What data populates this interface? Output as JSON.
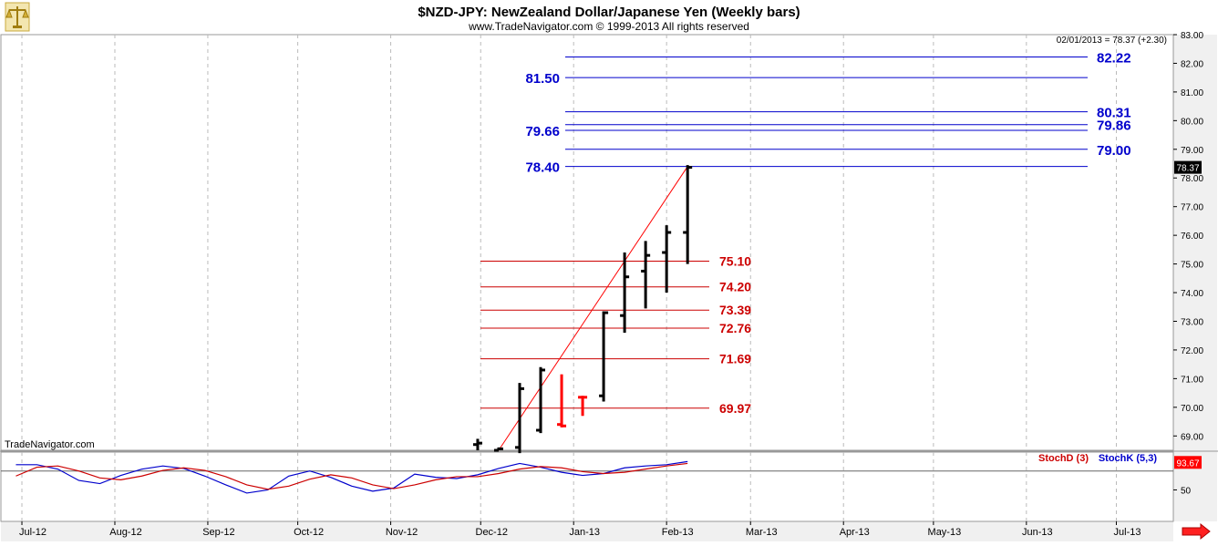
{
  "header": {
    "title": "$NZD-JPY:  NewZealand Dollar/Japanese Yen  (Weekly bars)",
    "copyright": "www.TradeNavigator.com © 1999-2013 All rights reserved",
    "readout": "02/01/2013 = 78.37 (+2.30)",
    "watermark": "TradeNavigator.com",
    "logo_icon": "scales-icon",
    "scroll_icon": "red-arrow-right-icon"
  },
  "colors": {
    "bar": "#000000",
    "down_bar": "#ff0000",
    "blue_level": "#0000cc",
    "red_level": "#cc0000",
    "stoch_d": "#cc0000",
    "stoch_k": "#0000cc",
    "grid": "#bbbbbb",
    "price_box": "#000000",
    "stoch_box": "#ff0000"
  },
  "chart_data": {
    "type": "bar",
    "title": "$NZD-JPY:  NewZealand Dollar/Japanese Yen  (Weekly bars)",
    "ylim": [
      68.5,
      83.0
    ],
    "y_ticks": [
      "83.00",
      "82.00",
      "81.00",
      "80.00",
      "79.00",
      "78.00",
      "77.00",
      "76.00",
      "75.00",
      "74.00",
      "73.00",
      "72.00",
      "71.00",
      "70.00",
      "69.00"
    ],
    "y_tick_values": [
      83,
      82,
      81,
      80,
      79,
      78,
      77,
      76,
      75,
      74,
      73,
      72,
      71,
      70,
      69
    ],
    "x_ticks": [
      "Jul-12",
      "Aug-12",
      "Sep-12",
      "Oct-12",
      "Nov-12",
      "Dec-12",
      "Jan-13",
      "Feb-13",
      "Mar-13",
      "Apr-13",
      "May-13",
      "Jun-13",
      "Jul-13"
    ],
    "x_tick_dates": [
      "2012-07-01",
      "2012-08-01",
      "2012-09-01",
      "2012-10-01",
      "2012-11-01",
      "2012-12-01",
      "2013-01-01",
      "2013-02-01",
      "2013-03-01",
      "2013-04-01",
      "2013-05-01",
      "2013-06-01",
      "2013-07-01"
    ],
    "x_range": [
      "2012-06-24",
      "2013-07-20"
    ],
    "last_price_label": "78.37",
    "last_price": 78.37,
    "bars": [
      {
        "date": "2012-11-30",
        "open": 68.7,
        "high": 68.9,
        "low": 68.5,
        "close": 68.75,
        "down": false
      },
      {
        "date": "2012-12-07",
        "open": 68.5,
        "high": 68.6,
        "low": 68.5,
        "close": 68.55,
        "down": false
      },
      {
        "date": "2012-12-14",
        "open": 68.6,
        "high": 70.85,
        "low": 68.4,
        "close": 70.65,
        "down": false
      },
      {
        "date": "2012-12-21",
        "open": 69.2,
        "high": 71.4,
        "low": 69.1,
        "close": 71.3,
        "down": false
      },
      {
        "date": "2012-12-28",
        "open": 69.4,
        "high": 71.15,
        "low": 69.3,
        "close": 69.35,
        "down": true
      },
      {
        "date": "2013-01-04",
        "open": 70.35,
        "high": 70.4,
        "low": 69.7,
        "close": 70.35,
        "down": true
      },
      {
        "date": "2013-01-11",
        "open": 70.4,
        "high": 73.35,
        "low": 70.2,
        "close": 73.3,
        "down": false
      },
      {
        "date": "2013-01-18",
        "open": 73.2,
        "high": 75.4,
        "low": 72.6,
        "close": 74.55,
        "down": false
      },
      {
        "date": "2013-01-25",
        "open": 74.75,
        "high": 75.8,
        "low": 73.45,
        "close": 75.3,
        "down": false
      },
      {
        "date": "2013-02-01",
        "open": 75.4,
        "high": 76.35,
        "low": 74.0,
        "close": 76.1,
        "down": false
      },
      {
        "date": "2013-02-08",
        "open": 76.1,
        "high": 78.45,
        "low": 75.0,
        "close": 78.37,
        "down": false
      }
    ],
    "trendline": {
      "start": {
        "date": "2012-12-07",
        "value": 68.5
      },
      "end": {
        "date": "2013-02-08",
        "value": 78.4
      }
    },
    "blue_levels": [
      {
        "label": "82.22",
        "value": 82.22,
        "label_side": "right"
      },
      {
        "label": "81.50",
        "value": 81.5,
        "label_side": "left"
      },
      {
        "label": "80.31",
        "value": 80.31,
        "label_side": "right"
      },
      {
        "label": "79.86",
        "value": 79.86,
        "label_side": "right"
      },
      {
        "label": "79.66",
        "value": 79.66,
        "label_side": "left"
      },
      {
        "label": "79.00",
        "value": 79.0,
        "label_side": "right"
      },
      {
        "label": "78.40",
        "value": 78.4,
        "label_side": "left"
      }
    ],
    "red_levels": [
      {
        "label": "75.10",
        "value": 75.1
      },
      {
        "label": "74.20",
        "value": 74.2
      },
      {
        "label": "73.39",
        "value": 73.39
      },
      {
        "label": "72.76",
        "value": 72.76
      },
      {
        "label": "71.69",
        "value": 71.69
      },
      {
        "label": "69.97",
        "value": 69.97
      }
    ],
    "stochastic": {
      "legend_d": "StochD (3)",
      "legend_k": "StochK (5,3)",
      "y_ticks": [
        "50"
      ],
      "y_tick_values": [
        50
      ],
      "ylim": [
        0,
        110
      ],
      "reference": 80,
      "last_label": "93.67",
      "last_value": 93.67,
      "dates": [
        "2012-06-29",
        "2012-07-06",
        "2012-07-13",
        "2012-07-20",
        "2012-07-27",
        "2012-08-03",
        "2012-08-10",
        "2012-08-17",
        "2012-08-24",
        "2012-08-31",
        "2012-09-07",
        "2012-09-14",
        "2012-09-21",
        "2012-09-28",
        "2012-10-05",
        "2012-10-12",
        "2012-10-19",
        "2012-10-26",
        "2012-11-02",
        "2012-11-09",
        "2012-11-16",
        "2012-11-23",
        "2012-11-30",
        "2012-12-07",
        "2012-12-14",
        "2012-12-21",
        "2012-12-28",
        "2013-01-04",
        "2013-01-11",
        "2013-01-18",
        "2013-01-25",
        "2013-02-01",
        "2013-02-08"
      ],
      "k": [
        90,
        90,
        83,
        65,
        60,
        73,
        83,
        88,
        84,
        72,
        58,
        45,
        50,
        72,
        80,
        70,
        56,
        48,
        53,
        75,
        70,
        68,
        74,
        84,
        92,
        86,
        78,
        73,
        76,
        85,
        88,
        90,
        95
      ],
      "d": [
        72,
        86,
        88,
        80,
        69,
        66,
        72,
        81,
        85,
        81,
        71,
        58,
        51,
        56,
        67,
        74,
        69,
        58,
        52,
        58,
        66,
        71,
        71,
        76,
        83,
        87,
        85,
        79,
        76,
        78,
        83,
        88,
        92
      ]
    }
  }
}
